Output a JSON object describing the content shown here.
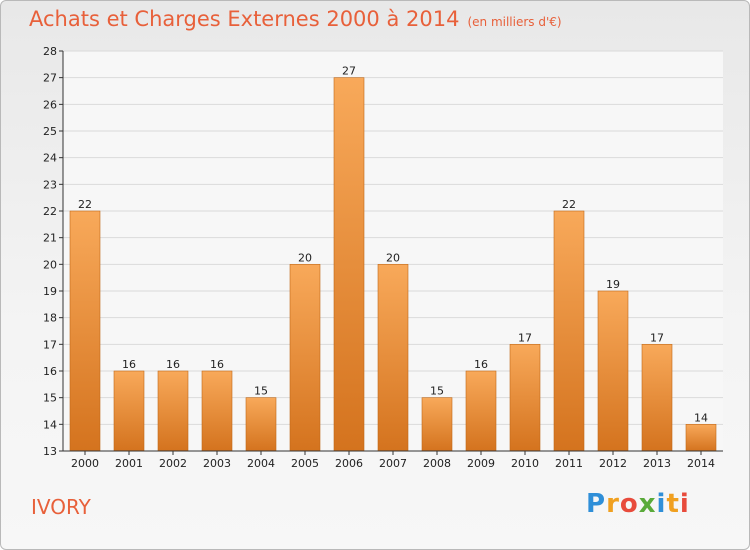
{
  "chart_data": {
    "type": "bar",
    "title": "Achats et Charges Externes 2000 à 2014",
    "subtitle": "(en milliers d'€)",
    "categories": [
      "2000",
      "2001",
      "2002",
      "2003",
      "2004",
      "2005",
      "2006",
      "2007",
      "2008",
      "2009",
      "2010",
      "2011",
      "2012",
      "2013",
      "2014"
    ],
    "values": [
      22,
      16,
      16,
      16,
      15,
      20,
      27,
      20,
      15,
      16,
      17,
      22,
      19,
      17,
      14
    ],
    "ylim": [
      13,
      28
    ],
    "yticks": [
      13,
      14,
      15,
      16,
      17,
      18,
      19,
      20,
      21,
      22,
      23,
      24,
      25,
      26,
      27,
      28
    ],
    "xlabel": "",
    "ylabel": "",
    "bar_color_top": "#f8a95a",
    "bar_color_bottom": "#d4731e"
  },
  "footer": {
    "location": "IVORY",
    "logo_letters": [
      "P",
      "r",
      "o",
      "x",
      "i",
      "t",
      "i"
    ],
    "logo_colors": [
      "#2f8fd8",
      "#f0a020",
      "#e84b3c",
      "#5aaa3a",
      "#2f8fd8",
      "#f0a020",
      "#e84b3c"
    ]
  }
}
